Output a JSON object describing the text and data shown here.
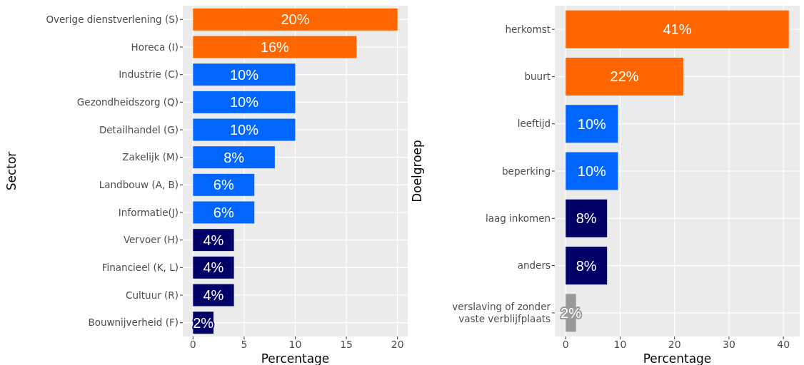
{
  "chart_data": [
    {
      "type": "bar",
      "orientation": "horizontal",
      "ylabel": "Sector",
      "xlabel": "Percentage",
      "categories": [
        "Overige dienstverlening (S)",
        "Horeca (I)",
        "Industrie (C)",
        "Gezondheidszorg (Q)",
        "Detailhandel (G)",
        "Zakelijk (M)",
        "Landbouw (A, B)",
        "Informatie(J)",
        "Vervoer (H)",
        "Financieel (K, L)",
        "Cultuur (R)",
        "Bouwnijverheid (F)"
      ],
      "values": [
        20,
        16,
        10,
        10,
        10,
        8,
        6,
        6,
        4,
        4,
        4,
        2
      ],
      "value_labels": [
        "20%",
        "16%",
        "10%",
        "10%",
        "10%",
        "8%",
        "6%",
        "6%",
        "4%",
        "4%",
        "4%",
        "2%"
      ],
      "colors": [
        "#ff6600",
        "#ff6600",
        "#0066ff",
        "#0066ff",
        "#0066ff",
        "#0066ff",
        "#0066ff",
        "#0066ff",
        "#000066",
        "#000066",
        "#000066",
        "#000066"
      ],
      "xlim": [
        -1,
        21
      ],
      "xticks": [
        0,
        5,
        10,
        15,
        20
      ],
      "grid": true
    },
    {
      "type": "bar",
      "orientation": "horizontal",
      "ylabel": "Doelgroep",
      "xlabel": "Percentage",
      "categories": [
        "herkomst",
        "buurt",
        "leeftijd",
        "beperking",
        "laag inkomen",
        "anders",
        "verslaving of zonder\nvaste verblijfplaats"
      ],
      "values": [
        41,
        21.6,
        9.6,
        9.6,
        7.6,
        7.6,
        1.9
      ],
      "value_labels": [
        "41%",
        "22%",
        "10%",
        "10%",
        "8%",
        "8%",
        "2%"
      ],
      "colors": [
        "#ff6600",
        "#ff6600",
        "#0066ff",
        "#0066ff",
        "#000066",
        "#000066",
        "#999999"
      ],
      "xlim": [
        -2,
        43
      ],
      "xticks": [
        0,
        10,
        20,
        30,
        40
      ],
      "grid": true
    }
  ]
}
